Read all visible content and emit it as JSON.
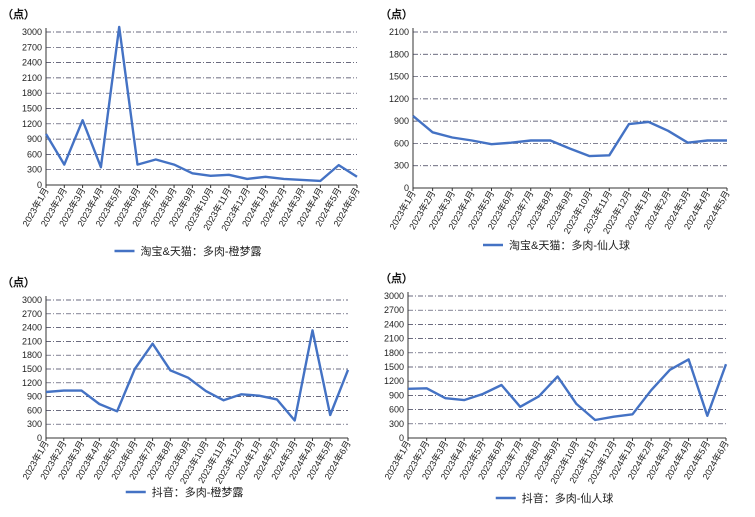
{
  "chart_data": [
    {
      "type": "line",
      "unit_label": "（点）",
      "categories": [
        "2023年1月",
        "2023年2月",
        "2023年3月",
        "2023年4月",
        "2023年5月",
        "2023年6月",
        "2023年7月",
        "2023年8月",
        "2023年9月",
        "2023年10月",
        "2023年11月",
        "2023年12月",
        "2024年1月",
        "2024年2月",
        "2024年3月",
        "2024年4月",
        "2024年5月",
        "2024年6月"
      ],
      "series": [
        {
          "name": "淘宝&天猫：多肉-橙梦露",
          "values": [
            1000,
            400,
            1270,
            350,
            3100,
            400,
            500,
            400,
            230,
            180,
            200,
            120,
            160,
            120,
            100,
            80,
            390,
            160
          ]
        }
      ],
      "ylim": [
        0,
        3000
      ],
      "yticks": [
        0,
        300,
        600,
        900,
        1200,
        1500,
        1800,
        2100,
        2400,
        2700,
        3000
      ],
      "grid": true,
      "legend_position": "bottom",
      "color": "#4472C4"
    },
    {
      "type": "line",
      "unit_label": "（点）",
      "categories": [
        "2023年1月",
        "2023年2月",
        "2023年3月",
        "2023年4月",
        "2023年5月",
        "2023年6月",
        "2023年7月",
        "2023年8月",
        "2023年9月",
        "2023年10月",
        "2023年11月",
        "2023年12月",
        "2024年1月",
        "2024年2月",
        "2024年3月",
        "2024年4月",
        "2024年5月"
      ],
      "series": [
        {
          "name": "淘宝&天猫：多肉-仙人球",
          "values": [
            970,
            750,
            680,
            640,
            590,
            610,
            640,
            640,
            530,
            430,
            440,
            860,
            890,
            770,
            610,
            640,
            640
          ]
        }
      ],
      "ylim": [
        0,
        2100
      ],
      "yticks": [
        0,
        300,
        600,
        900,
        1200,
        1500,
        1800,
        2100
      ],
      "grid": true,
      "legend_position": "bottom",
      "color": "#4472C4"
    },
    {
      "type": "line",
      "unit_label": "（点）",
      "categories": [
        "2023年1月",
        "2023年2月",
        "2023年3月",
        "2023年4月",
        "2023年5月",
        "2023年6月",
        "2023年7月",
        "2023年8月",
        "2023年9月",
        "2023年10月",
        "2023年11月",
        "2023年12月",
        "2024年1月",
        "2024年2月",
        "2024年3月",
        "2024年4月",
        "2024年5月",
        "2024年6月"
      ],
      "series": [
        {
          "name": "抖音：多肉-橙梦露",
          "values": [
            1000,
            1030,
            1030,
            740,
            580,
            1500,
            2050,
            1470,
            1310,
            1020,
            820,
            950,
            920,
            840,
            380,
            2340,
            500,
            1480
          ]
        }
      ],
      "ylim": [
        0,
        3000
      ],
      "yticks": [
        0,
        300,
        600,
        900,
        1200,
        1500,
        1800,
        2100,
        2400,
        2700,
        3000
      ],
      "grid": true,
      "legend_position": "bottom",
      "color": "#4472C4"
    },
    {
      "type": "line",
      "unit_label": "（点）",
      "categories": [
        "2023年1月",
        "2023年2月",
        "2023年3月",
        "2023年4月",
        "2023年5月",
        "2023年6月",
        "2023年7月",
        "2023年8月",
        "2023年9月",
        "2023年10月",
        "2023年11月",
        "2023年12月",
        "2024年1月",
        "2024年2月",
        "2024年3月",
        "2024年4月",
        "2024年5月",
        "2024年6月"
      ],
      "series": [
        {
          "name": "抖音：多肉-仙人球",
          "values": [
            1040,
            1050,
            840,
            800,
            930,
            1120,
            660,
            880,
            1300,
            720,
            380,
            450,
            500,
            1010,
            1440,
            1660,
            470,
            1560
          ]
        }
      ],
      "ylim": [
        0,
        3000
      ],
      "yticks": [
        0,
        300,
        600,
        900,
        1200,
        1500,
        1800,
        2100,
        2400,
        2700,
        3000
      ],
      "grid": true,
      "legend_position": "bottom",
      "color": "#4472C4"
    }
  ]
}
